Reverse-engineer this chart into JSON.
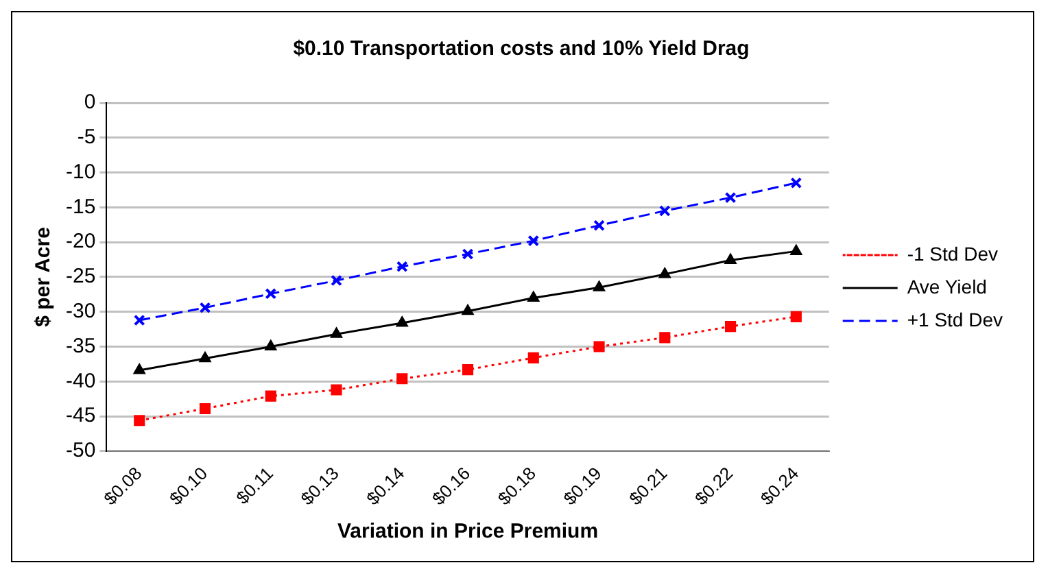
{
  "chart_data": {
    "type": "line",
    "title": "$0.10 Transportation costs and 10% Yield Drag",
    "xlabel": "Variation in Price Premium",
    "ylabel": "$ per Acre",
    "categories": [
      "$0.08",
      "$0.10",
      "$0.11",
      "$0.13",
      "$0.14",
      "$0.16",
      "$0.18",
      "$0.19",
      "$0.21",
      "$0.22",
      "$0.24"
    ],
    "series": [
      {
        "name": "-1 Std Dev",
        "color": "#ff0000",
        "marker": "square",
        "line_style": "dotted",
        "values": [
          -45.6,
          -43.9,
          -42.1,
          -41.2,
          -39.6,
          -38.3,
          -36.6,
          -35.0,
          -33.7,
          -32.1,
          -30.7
        ]
      },
      {
        "name": "Ave Yield",
        "color": "#000000",
        "marker": "triangle",
        "line_style": "solid",
        "values": [
          -38.4,
          -36.7,
          -35.0,
          -33.2,
          -31.6,
          -29.9,
          -28.0,
          -26.5,
          -24.6,
          -22.6,
          -21.3
        ]
      },
      {
        "name": "+1 Std Dev",
        "color": "#0000ff",
        "marker": "cross",
        "line_style": "dashed",
        "values": [
          -31.2,
          -29.4,
          -27.4,
          -25.5,
          -23.5,
          -21.7,
          -19.8,
          -17.6,
          -15.5,
          -13.6,
          -11.5
        ]
      }
    ],
    "ylim": [
      -50,
      0
    ],
    "yticks": [
      -50,
      -45,
      -40,
      -35,
      -30,
      -25,
      -20,
      -15,
      -10,
      -5,
      0
    ],
    "grid": "y",
    "legend": "right"
  }
}
